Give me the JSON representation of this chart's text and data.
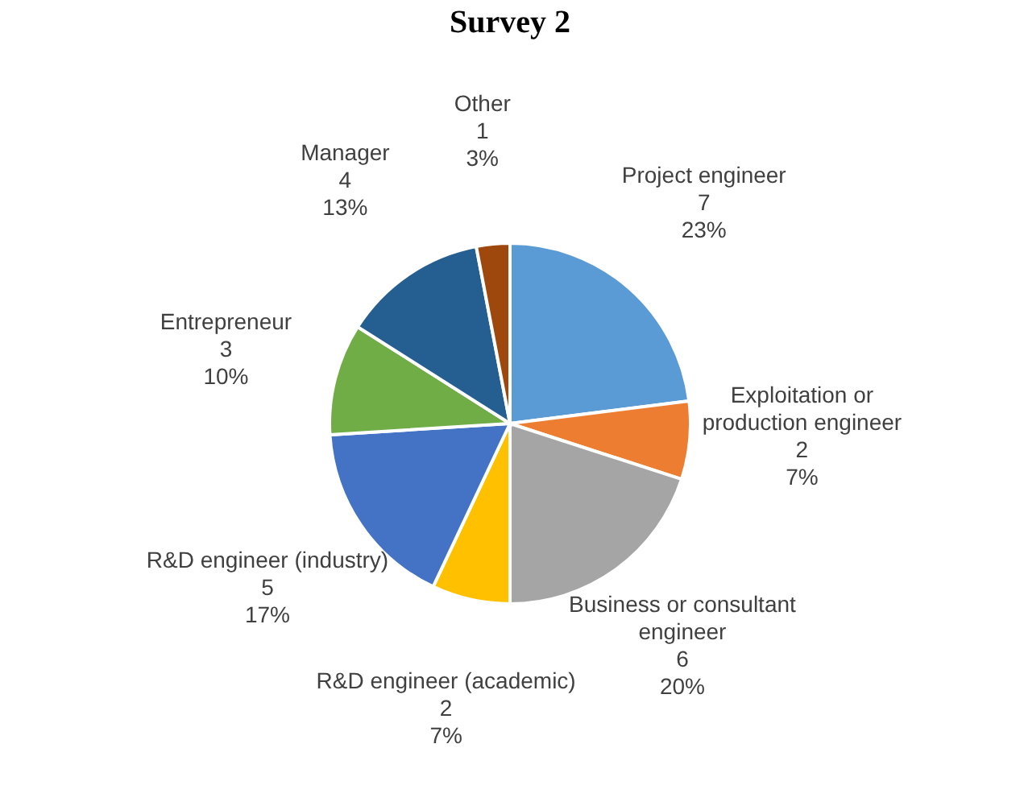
{
  "chart_data": {
    "type": "pie",
    "title": "Survey 2",
    "categories": [
      "Project engineer",
      "Exploitation or production engineer",
      "Business or consultant engineer",
      "R&D engineer (academic)",
      "R&D engineer (industry)",
      "Entrepreneur",
      "Manager",
      "Other"
    ],
    "values": [
      23,
      7,
      20,
      7,
      17,
      10,
      13,
      3
    ],
    "value_labels": [
      "7\n23%",
      "2\n7%",
      "6\n20%",
      "2\n7%",
      "5\n17%",
      "3\n10%",
      "4\n13%",
      "1\n3%"
    ],
    "colors": [
      "#5b9bd5",
      "#ed7d31",
      "#a5a5a5",
      "#ffc000",
      "#4472c4",
      "#70ad47",
      "#255e91",
      "#9e480e"
    ],
    "legend": false
  }
}
